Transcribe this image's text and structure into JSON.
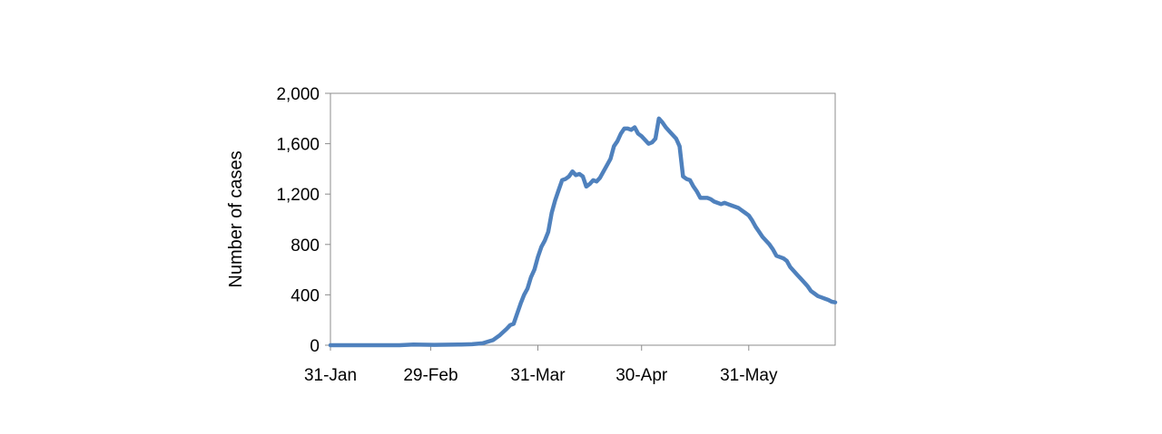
{
  "chart_data": {
    "type": "line",
    "title": "",
    "xlabel": "",
    "ylabel": "Number of cases",
    "ylim": [
      0,
      2000
    ],
    "xlim": [
      "2020-01-31",
      "2020-06-25"
    ],
    "yticks": [
      {
        "value": 0,
        "label": "0"
      },
      {
        "value": 400,
        "label": "400"
      },
      {
        "value": 800,
        "label": "800"
      },
      {
        "value": 1200,
        "label": "1,200"
      },
      {
        "value": 1600,
        "label": "1,600"
      },
      {
        "value": 2000,
        "label": "2,000"
      }
    ],
    "xticks": [
      {
        "date": "2020-01-31",
        "label": "31-Jan"
      },
      {
        "date": "2020-02-29",
        "label": "29-Feb"
      },
      {
        "date": "2020-03-31",
        "label": "31-Mar"
      },
      {
        "date": "2020-04-30",
        "label": "30-Apr"
      },
      {
        "date": "2020-05-31",
        "label": "31-May"
      }
    ],
    "grid": false,
    "series_color": "#4f81bd",
    "series": [
      {
        "points": [
          [
            "2020-01-31",
            0
          ],
          [
            "2020-02-10",
            0
          ],
          [
            "2020-02-20",
            0
          ],
          [
            "2020-02-24",
            5
          ],
          [
            "2020-03-01",
            3
          ],
          [
            "2020-03-08",
            5
          ],
          [
            "2020-03-12",
            8
          ],
          [
            "2020-03-15",
            15
          ],
          [
            "2020-03-18",
            40
          ],
          [
            "2020-03-20",
            80
          ],
          [
            "2020-03-22",
            130
          ],
          [
            "2020-03-23",
            160
          ],
          [
            "2020-03-24",
            170
          ],
          [
            "2020-03-25",
            250
          ],
          [
            "2020-03-26",
            330
          ],
          [
            "2020-03-27",
            400
          ],
          [
            "2020-03-28",
            450
          ],
          [
            "2020-03-29",
            540
          ],
          [
            "2020-03-30",
            600
          ],
          [
            "2020-03-31",
            700
          ],
          [
            "2020-04-01",
            780
          ],
          [
            "2020-04-02",
            830
          ],
          [
            "2020-04-03",
            900
          ],
          [
            "2020-04-04",
            1050
          ],
          [
            "2020-04-05",
            1150
          ],
          [
            "2020-04-06",
            1230
          ],
          [
            "2020-04-07",
            1310
          ],
          [
            "2020-04-08",
            1320
          ],
          [
            "2020-04-09",
            1340
          ],
          [
            "2020-04-10",
            1380
          ],
          [
            "2020-04-11",
            1350
          ],
          [
            "2020-04-12",
            1360
          ],
          [
            "2020-04-13",
            1340
          ],
          [
            "2020-04-14",
            1260
          ],
          [
            "2020-04-15",
            1280
          ],
          [
            "2020-04-16",
            1310
          ],
          [
            "2020-04-17",
            1300
          ],
          [
            "2020-04-18",
            1330
          ],
          [
            "2020-04-19",
            1380
          ],
          [
            "2020-04-20",
            1430
          ],
          [
            "2020-04-21",
            1480
          ],
          [
            "2020-04-22",
            1580
          ],
          [
            "2020-04-23",
            1620
          ],
          [
            "2020-04-24",
            1680
          ],
          [
            "2020-04-25",
            1720
          ],
          [
            "2020-04-26",
            1720
          ],
          [
            "2020-04-27",
            1710
          ],
          [
            "2020-04-28",
            1730
          ],
          [
            "2020-04-29",
            1680
          ],
          [
            "2020-04-30",
            1660
          ],
          [
            "2020-05-01",
            1630
          ],
          [
            "2020-05-02",
            1600
          ],
          [
            "2020-05-03",
            1610
          ],
          [
            "2020-05-04",
            1640
          ],
          [
            "2020-05-05",
            1800
          ],
          [
            "2020-05-06",
            1770
          ],
          [
            "2020-05-07",
            1730
          ],
          [
            "2020-05-08",
            1700
          ],
          [
            "2020-05-09",
            1670
          ],
          [
            "2020-05-10",
            1640
          ],
          [
            "2020-05-11",
            1580
          ],
          [
            "2020-05-12",
            1340
          ],
          [
            "2020-05-13",
            1320
          ],
          [
            "2020-05-14",
            1310
          ],
          [
            "2020-05-15",
            1260
          ],
          [
            "2020-05-16",
            1220
          ],
          [
            "2020-05-17",
            1170
          ],
          [
            "2020-05-18",
            1170
          ],
          [
            "2020-05-19",
            1170
          ],
          [
            "2020-05-20",
            1160
          ],
          [
            "2020-05-21",
            1140
          ],
          [
            "2020-05-22",
            1130
          ],
          [
            "2020-05-23",
            1120
          ],
          [
            "2020-05-24",
            1130
          ],
          [
            "2020-05-25",
            1120
          ],
          [
            "2020-05-26",
            1110
          ],
          [
            "2020-05-27",
            1100
          ],
          [
            "2020-05-28",
            1090
          ],
          [
            "2020-05-29",
            1070
          ],
          [
            "2020-05-30",
            1050
          ],
          [
            "2020-05-31",
            1030
          ],
          [
            "2020-06-01",
            990
          ],
          [
            "2020-06-02",
            940
          ],
          [
            "2020-06-03",
            900
          ],
          [
            "2020-06-04",
            860
          ],
          [
            "2020-06-05",
            830
          ],
          [
            "2020-06-06",
            800
          ],
          [
            "2020-06-07",
            760
          ],
          [
            "2020-06-08",
            710
          ],
          [
            "2020-06-09",
            700
          ],
          [
            "2020-06-10",
            690
          ],
          [
            "2020-06-11",
            670
          ],
          [
            "2020-06-12",
            620
          ],
          [
            "2020-06-13",
            590
          ],
          [
            "2020-06-14",
            560
          ],
          [
            "2020-06-15",
            530
          ],
          [
            "2020-06-16",
            500
          ],
          [
            "2020-06-17",
            470
          ],
          [
            "2020-06-18",
            430
          ],
          [
            "2020-06-19",
            410
          ],
          [
            "2020-06-20",
            390
          ],
          [
            "2020-06-21",
            380
          ],
          [
            "2020-06-22",
            370
          ],
          [
            "2020-06-23",
            360
          ],
          [
            "2020-06-24",
            345
          ],
          [
            "2020-06-25",
            340
          ]
        ]
      }
    ]
  }
}
